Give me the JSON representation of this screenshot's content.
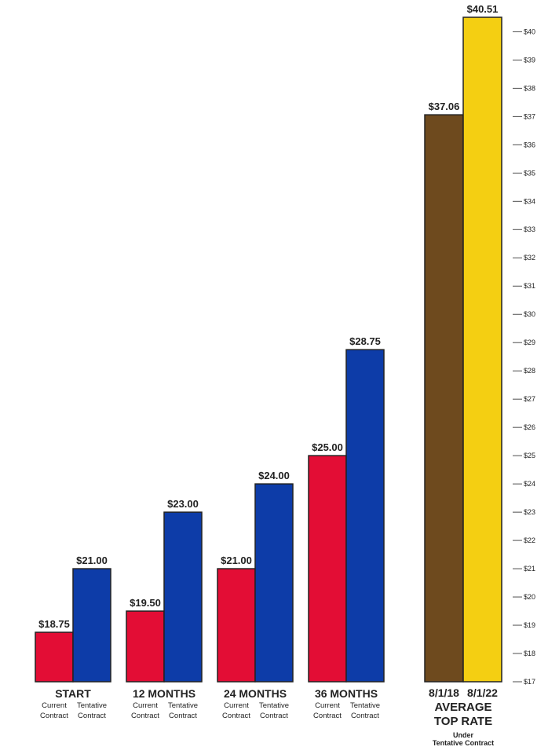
{
  "chart_data": {
    "type": "bar",
    "title": "",
    "ylim": [
      17,
      40.51
    ],
    "y_ticks": [
      "$17",
      "$18",
      "$19",
      "$20",
      "$21",
      "$22",
      "$23",
      "$24",
      "$25",
      "$26",
      "$27",
      "$28",
      "$29",
      "$30",
      "$31",
      "$32",
      "$33",
      "$34",
      "$35",
      "$36",
      "$37",
      "$38",
      "$39",
      "$40"
    ],
    "y_tick_values": [
      17,
      18,
      19,
      20,
      21,
      22,
      23,
      24,
      25,
      26,
      27,
      28,
      29,
      30,
      31,
      32,
      33,
      34,
      35,
      36,
      37,
      38,
      39,
      40
    ],
    "groups": [
      {
        "label": "START",
        "bars": [
          {
            "name": "Current Contract",
            "name_lines": [
              "Current",
              "Contract"
            ],
            "value": 18.75,
            "label": "$18.75",
            "color": "#e30d35"
          },
          {
            "name": "Tentative Contract",
            "name_lines": [
              "Tentative",
              "Contract"
            ],
            "value": 21.0,
            "label": "$21.00",
            "color": "#0d3ca8"
          }
        ]
      },
      {
        "label": "12 MONTHS",
        "bars": [
          {
            "name": "Current Contract",
            "name_lines": [
              "Current",
              "Contract"
            ],
            "value": 19.5,
            "label": "$19.50",
            "color": "#e30d35"
          },
          {
            "name": "Tentative Contract",
            "name_lines": [
              "Tentative",
              "Contract"
            ],
            "value": 23.0,
            "label": "$23.00",
            "color": "#0d3ca8"
          }
        ]
      },
      {
        "label": "24 MONTHS",
        "bars": [
          {
            "name": "Current Contract",
            "name_lines": [
              "Current",
              "Contract"
            ],
            "value": 21.0,
            "label": "$21.00",
            "color": "#e30d35"
          },
          {
            "name": "Tentative Contract",
            "name_lines": [
              "Tentative",
              "Contract"
            ],
            "value": 24.0,
            "label": "$24.00",
            "color": "#0d3ca8"
          }
        ]
      },
      {
        "label": "36 MONTHS",
        "bars": [
          {
            "name": "Current Contract",
            "name_lines": [
              "Current",
              "Contract"
            ],
            "value": 25.0,
            "label": "$25.00",
            "color": "#e30d35"
          },
          {
            "name": "Tentative Contract",
            "name_lines": [
              "Tentative",
              "Contract"
            ],
            "value": 28.75,
            "label": "$28.75",
            "color": "#0d3ca8"
          }
        ]
      }
    ],
    "average": {
      "label_lines": [
        "AVERAGE",
        "TOP RATE"
      ],
      "sub_lines": [
        "Under",
        "Tentative Contract"
      ],
      "bars": [
        {
          "name": "8/1/18",
          "value": 37.06,
          "label": "$37.06",
          "color": "#6e4a1e"
        },
        {
          "name": "8/1/22",
          "value": 40.51,
          "label": "$40.51",
          "color": "#f4cf12"
        }
      ]
    }
  }
}
